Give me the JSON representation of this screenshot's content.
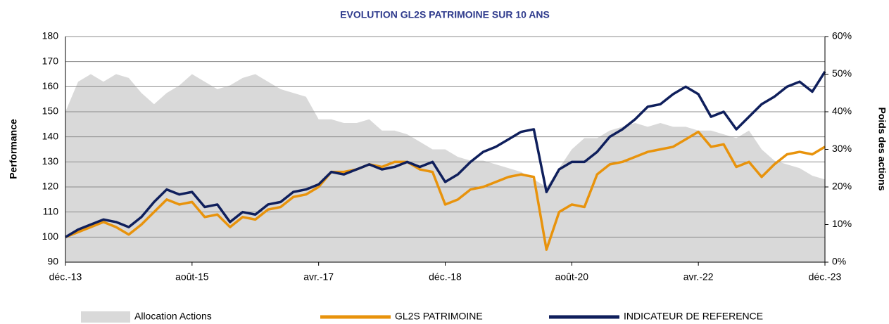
{
  "chart_data": {
    "type": "line",
    "title": "EVOLUTION GL2S PATRIMOINE SUR 10 ANS",
    "ylabel": "Performance",
    "y2label": "Poids des actions",
    "categories": [
      "déc.-13",
      null,
      null,
      null,
      null,
      null,
      null,
      null,
      null,
      null,
      "août-15",
      null,
      null,
      null,
      null,
      null,
      null,
      null,
      null,
      null,
      "avr.-17",
      null,
      null,
      null,
      null,
      null,
      null,
      null,
      null,
      null,
      "déc.-18",
      null,
      null,
      null,
      null,
      null,
      null,
      null,
      null,
      null,
      "août-20",
      null,
      null,
      null,
      null,
      null,
      null,
      null,
      null,
      null,
      "avr.-22",
      null,
      null,
      null,
      null,
      null,
      null,
      null,
      null,
      null,
      "déc.-23"
    ],
    "series": [
      {
        "name": "Allocation Actions",
        "type": "area",
        "axis": "y2",
        "color": "#d9d9d9",
        "values": [
          40,
          48,
          50,
          48,
          50,
          49,
          45,
          42,
          45,
          47,
          50,
          48,
          46,
          47,
          49,
          50,
          48,
          46,
          45,
          44,
          38,
          38,
          37,
          37,
          38,
          35,
          35,
          34,
          32,
          30,
          30,
          28,
          27,
          27,
          26,
          25,
          24,
          22,
          20,
          25,
          30,
          33,
          33,
          35,
          36,
          37,
          36,
          37,
          36,
          36,
          35,
          35,
          34,
          33,
          35,
          30,
          27,
          26,
          25,
          23,
          22
        ]
      },
      {
        "name": "GL2S PATRIMOINE",
        "type": "line",
        "color": "#e8930c",
        "values": [
          100,
          102,
          104,
          106,
          104,
          101,
          105,
          110,
          115,
          113,
          114,
          108,
          109,
          104,
          108,
          107,
          111,
          112,
          116,
          117,
          120,
          126,
          126,
          127,
          129,
          128,
          130,
          130,
          127,
          126,
          113,
          115,
          119,
          120,
          122,
          124,
          125,
          124,
          95,
          110,
          113,
          112,
          125,
          129,
          130,
          132,
          134,
          135,
          136,
          139,
          142,
          136,
          137,
          128,
          130,
          124,
          129,
          133,
          134,
          133,
          136
        ]
      },
      {
        "name": "INDICATEUR DE REFERENCE",
        "type": "line",
        "color": "#0f1f5c",
        "values": [
          100,
          103,
          105,
          107,
          106,
          104,
          108,
          114,
          119,
          117,
          118,
          112,
          113,
          106,
          110,
          109,
          113,
          114,
          118,
          119,
          121,
          126,
          125,
          127,
          129,
          127,
          128,
          130,
          128,
          130,
          122,
          125,
          130,
          134,
          136,
          139,
          142,
          143,
          118,
          127,
          130,
          130,
          134,
          140,
          143,
          147,
          152,
          153,
          157,
          160,
          157,
          148,
          150,
          143,
          148,
          153,
          156,
          160,
          162,
          158,
          166
        ]
      }
    ],
    "ylim": [
      90,
      180
    ],
    "yticks": [
      90,
      100,
      110,
      120,
      130,
      140,
      150,
      160,
      170,
      180
    ],
    "y2lim": [
      0,
      60
    ],
    "y2ticks": [
      {
        "value": 0,
        "label": "0%"
      },
      {
        "value": 10,
        "label": "10%"
      },
      {
        "value": 20,
        "label": "20%"
      },
      {
        "value": 30,
        "label": "30%"
      },
      {
        "value": 40,
        "label": "40%"
      },
      {
        "value": 50,
        "label": "50%"
      },
      {
        "value": 60,
        "label": "60%"
      }
    ],
    "grid": true,
    "legend": "bottom"
  }
}
